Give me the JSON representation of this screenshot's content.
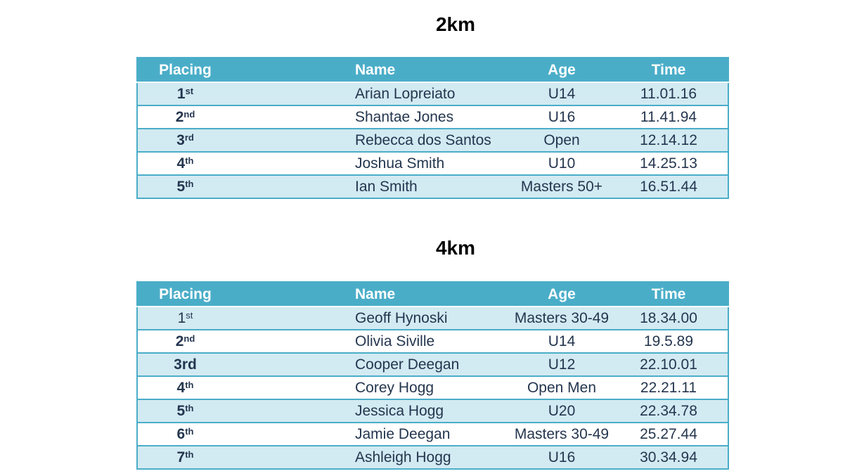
{
  "tables": [
    {
      "title": "2km",
      "headers": {
        "placing": "Placing",
        "name": "Name",
        "age": "Age",
        "time": "Time"
      },
      "rows": [
        {
          "place_num": "1",
          "place_suffix": "st",
          "name": "Arian Lopreiato",
          "age": "U14",
          "time": "11.01.16"
        },
        {
          "place_num": "2",
          "place_suffix": "nd",
          "name": "Shantae Jones",
          "age": "U16",
          "time": "11.41.94"
        },
        {
          "place_num": "3",
          "place_suffix": "rd",
          "name": "Rebecca dos Santos",
          "age": "Open",
          "time": "12.14.12"
        },
        {
          "place_num": "4",
          "place_suffix": "th",
          "name": "Joshua Smith",
          "age": "U10",
          "time": "14.25.13"
        },
        {
          "place_num": "5",
          "place_suffix": "th",
          "name": "Ian Smith",
          "age": "Masters 50+",
          "time": "16.51.44"
        }
      ]
    },
    {
      "title": "4km",
      "headers": {
        "placing": "Placing",
        "name": "Name",
        "age": "Age",
        "time": "Time"
      },
      "rows": [
        {
          "place_num": "1",
          "place_suffix": "st",
          "name": "Geoff Hynoski",
          "age": "Masters 30-49",
          "time": "18.34.00"
        },
        {
          "place_num": "2",
          "place_suffix": "nd",
          "name": "Olivia Siville",
          "age": "U14",
          "time": "19.5.89"
        },
        {
          "place_num": "3rd",
          "place_suffix": "",
          "name": "Cooper Deegan",
          "age": "U12",
          "time": "22.10.01"
        },
        {
          "place_num": "4",
          "place_suffix": "th",
          "name": "Corey Hogg",
          "age": "Open Men",
          "time": "22.21.11"
        },
        {
          "place_num": "5",
          "place_suffix": "th",
          "name": "Jessica Hogg",
          "age": "U20",
          "time": "22.34.78"
        },
        {
          "place_num": "6",
          "place_suffix": "th",
          "name": "Jamie Deegan",
          "age": "Masters 30-49",
          "time": "25.27.44"
        },
        {
          "place_num": "7",
          "place_suffix": "th",
          "name": "Ashleigh Hogg",
          "age": "U16",
          "time": "30.34.94"
        }
      ]
    }
  ]
}
